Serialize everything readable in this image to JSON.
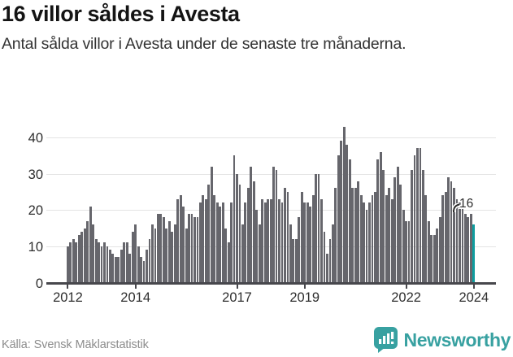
{
  "header": {
    "title": "16 villor såldes i Avesta",
    "subtitle": "Antal sålda villor i Avesta under de senaste tre månaderna."
  },
  "chart_data": {
    "type": "bar",
    "title": "16 villor såldes i Avesta",
    "subtitle": "Antal sålda villor i Avesta under de senaste tre månaderna.",
    "frequency": "monthly",
    "x_start": "2012-01",
    "x_end": "2024-01",
    "series_by_year": {
      "2012": [
        10,
        11,
        12,
        11,
        13,
        14,
        15,
        17,
        21,
        16,
        12,
        11
      ],
      "2013": [
        10,
        11,
        10,
        9,
        8,
        7,
        7,
        9,
        11,
        11,
        8,
        14
      ],
      "2014": [
        16,
        10,
        7,
        6,
        9,
        12,
        16,
        15,
        19,
        19,
        18,
        15
      ],
      "2015": [
        17,
        14,
        16,
        23,
        24,
        21,
        15,
        19,
        19,
        18,
        18,
        22
      ],
      "2016": [
        24,
        23,
        27,
        32,
        24,
        22,
        21,
        22,
        15,
        11,
        22,
        35
      ],
      "2017": [
        30,
        27,
        16,
        22,
        26,
        32,
        28,
        20,
        16,
        23,
        22,
        23
      ],
      "2018": [
        23,
        32,
        31,
        23,
        22,
        26,
        25,
        16,
        12,
        12,
        18,
        25
      ],
      "2019": [
        22,
        22,
        21,
        24,
        30,
        30,
        23,
        14,
        8,
        12,
        16,
        26
      ],
      "2020": [
        35,
        39,
        43,
        38,
        34,
        26,
        26,
        28,
        24,
        22,
        20,
        22
      ],
      "2021": [
        24,
        25,
        34,
        36,
        31,
        24,
        26,
        23,
        29,
        32,
        27,
        20
      ],
      "2022": [
        17,
        17,
        31,
        35,
        37,
        37,
        31,
        24,
        17,
        13,
        13,
        15
      ],
      "2023": [
        18,
        24,
        25,
        29,
        28,
        26,
        23,
        22,
        21,
        19,
        18,
        19
      ],
      "2024": [
        16
      ]
    },
    "ylim": [
      0,
      45
    ],
    "yticks": [
      0,
      10,
      20,
      30,
      40
    ],
    "x_tick_labels": [
      "2012",
      "2014",
      "2017",
      "2019",
      "2022",
      "2024"
    ],
    "grid": true,
    "legend": "none",
    "annotation": {
      "text": "16",
      "target": "last-bar"
    },
    "highlight_last": true,
    "colors": {
      "bar": "#66666c",
      "highlight": "#0f9d9f",
      "grid": "#e4e4e4",
      "axis": "#47474c"
    }
  },
  "footer": {
    "source": "Källa: Svensk Mäklarstatistik"
  },
  "logo": {
    "text": "Newsworthy",
    "icon": "newsworthy-speech-bubble-chart-icon",
    "color": "#38a1a1"
  }
}
